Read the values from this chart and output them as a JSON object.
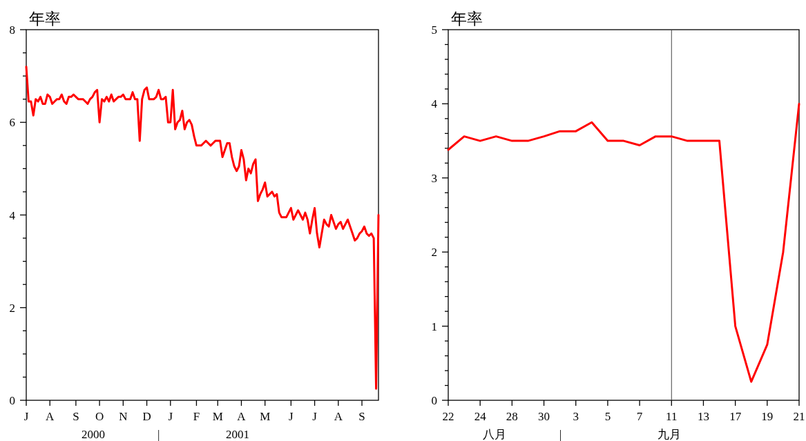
{
  "chart_data": [
    {
      "type": "line",
      "ylabel": "年率",
      "categories": [
        "J",
        null,
        null,
        null,
        null,
        null,
        null,
        null,
        null,
        null,
        "A",
        null,
        null,
        null,
        null,
        null,
        null,
        null,
        null,
        null,
        null,
        "S",
        null,
        null,
        null,
        null,
        null,
        null,
        null,
        null,
        null,
        "O",
        null,
        null,
        null,
        null,
        null,
        null,
        null,
        null,
        null,
        "N",
        null,
        null,
        null,
        null,
        null,
        null,
        null,
        null,
        null,
        "D",
        null,
        null,
        null,
        null,
        null,
        null,
        null,
        null,
        null,
        "J",
        null,
        null,
        null,
        null,
        null,
        null,
        null,
        null,
        null,
        null,
        "F",
        null,
        null,
        null,
        null,
        null,
        null,
        null,
        null,
        "M",
        null,
        null,
        null,
        null,
        null,
        null,
        null,
        null,
        null,
        "A",
        null,
        null,
        null,
        null,
        null,
        null,
        null,
        null,
        null,
        "M",
        null,
        null,
        null,
        null,
        null,
        null,
        null,
        null,
        null,
        null,
        "J",
        null,
        null,
        null,
        null,
        null,
        null,
        null,
        null,
        null,
        "J",
        null,
        null,
        null,
        null,
        null,
        null,
        null,
        null,
        null,
        "A",
        null,
        null,
        null,
        null,
        null,
        null,
        null,
        null,
        null,
        "S",
        null,
        null,
        null,
        null,
        null,
        null,
        null
      ],
      "series": [
        {
          "color": "#ff0000",
          "values": [
            7.2,
            6.45,
            6.45,
            6.15,
            6.5,
            6.45,
            6.55,
            6.4,
            6.4,
            6.6,
            6.55,
            6.4,
            6.45,
            6.5,
            6.5,
            6.6,
            6.45,
            6.4,
            6.55,
            6.55,
            6.6,
            6.55,
            6.5,
            6.5,
            6.5,
            6.45,
            6.4,
            6.5,
            6.55,
            6.65,
            6.7,
            6.0,
            6.5,
            6.45,
            6.55,
            6.45,
            6.6,
            6.45,
            6.5,
            6.55,
            6.55,
            6.6,
            6.5,
            6.5,
            6.5,
            6.65,
            6.5,
            6.5,
            5.6,
            6.5,
            6.7,
            6.75,
            6.5,
            6.5,
            6.5,
            6.55,
            6.7,
            6.5,
            6.5,
            6.55,
            6.0,
            6.0,
            6.7,
            5.85,
            6.0,
            6.05,
            6.25,
            5.85,
            6.0,
            6.05,
            5.95,
            5.7,
            5.5,
            5.5,
            5.5,
            5.55,
            5.6,
            5.55,
            5.5,
            5.55,
            5.6,
            5.6,
            5.6,
            5.25,
            5.4,
            5.55,
            5.55,
            5.25,
            5.05,
            4.95,
            5.05,
            5.4,
            5.2,
            4.75,
            5.0,
            4.9,
            5.1,
            5.2,
            4.3,
            4.45,
            4.55,
            4.7,
            4.4,
            4.45,
            4.5,
            4.4,
            4.45,
            4.05,
            3.95,
            3.95,
            3.95,
            4.05,
            4.15,
            3.9,
            4.0,
            4.1,
            4.0,
            3.9,
            4.05,
            3.9,
            3.6,
            3.9,
            4.15,
            3.6,
            3.3,
            3.6,
            3.9,
            3.8,
            3.75,
            4.0,
            3.85,
            3.7,
            3.8,
            3.85,
            3.7,
            3.8,
            3.9,
            3.75,
            3.6,
            3.45,
            3.5,
            3.6,
            3.65,
            3.75,
            3.6,
            3.55,
            3.6,
            3.5,
            0.25,
            4.0
          ]
        }
      ],
      "ylim": [
        0,
        8
      ],
      "yticks": [
        0,
        {
          "value": 0.5,
          "label": null
        },
        {
          "value": 1,
          "label": null
        },
        {
          "value": 1.5,
          "label": null
        },
        2,
        {
          "value": 2.5,
          "label": null
        },
        {
          "value": 3,
          "label": null
        },
        {
          "value": 3.5,
          "label": null
        },
        4,
        {
          "value": 4.5,
          "label": null
        },
        {
          "value": 5,
          "label": null
        },
        {
          "value": 5.5,
          "label": null
        },
        6,
        {
          "value": 6.5,
          "label": null
        },
        {
          "value": 7,
          "label": null
        },
        {
          "value": 7.5,
          "label": null
        },
        8
      ],
      "annotations": [
        "2000",
        "|",
        "2001"
      ]
    },
    {
      "type": "line",
      "ylabel": "年率",
      "categories": [
        "22",
        null,
        "24",
        null,
        "28",
        null,
        "30",
        null,
        "3",
        null,
        "5",
        null,
        "7",
        null,
        "11",
        null,
        "13",
        null,
        "17",
        null,
        "19",
        null,
        "21"
      ],
      "series": [
        {
          "color": "#ff0000",
          "values": [
            3.38,
            3.56,
            3.5,
            3.56,
            3.5,
            3.5,
            3.56,
            3.63,
            3.63,
            3.75,
            3.5,
            3.5,
            3.44,
            3.56,
            3.56,
            3.5,
            3.5,
            3.5,
            1.0,
            0.25,
            0.75,
            2.0,
            4.0
          ]
        }
      ],
      "ylim": [
        0,
        5
      ],
      "yticks": [
        0,
        {
          "value": 0.2,
          "label": null
        },
        {
          "value": 0.4,
          "label": null
        },
        {
          "value": 0.6,
          "label": null
        },
        {
          "value": 0.8,
          "label": null
        },
        1,
        {
          "value": 1.2,
          "label": null
        },
        {
          "value": 1.4,
          "label": null
        },
        {
          "value": 1.6,
          "label": null
        },
        {
          "value": 1.8,
          "label": null
        },
        2,
        {
          "value": 2.2,
          "label": null
        },
        {
          "value": 2.4,
          "label": null
        },
        {
          "value": 2.6,
          "label": null
        },
        {
          "value": 2.8,
          "label": null
        },
        3,
        {
          "value": 3.2,
          "label": null
        },
        {
          "value": 3.4,
          "label": null
        },
        {
          "value": 3.6,
          "label": null
        },
        {
          "value": 3.8,
          "label": null
        },
        4,
        {
          "value": 4.2,
          "label": null
        },
        {
          "value": 4.4,
          "label": null
        },
        {
          "value": 4.6,
          "label": null
        },
        {
          "value": 4.8,
          "label": null
        },
        5
      ],
      "ref_lines": [
        {
          "axis": "x",
          "value": "11",
          "color": "#444444"
        }
      ],
      "annotations": [
        "八月",
        "|",
        "九月"
      ]
    }
  ]
}
